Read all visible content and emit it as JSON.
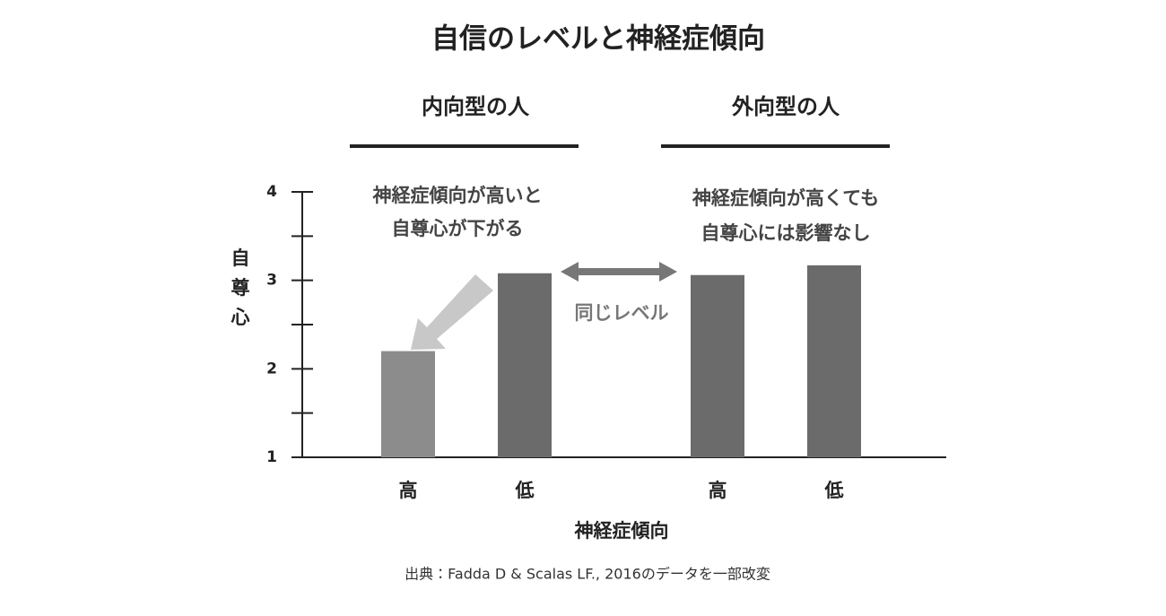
{
  "chart_data": {
    "type": "bar",
    "title": "自信のレベルと神経症傾向",
    "groups": [
      {
        "label": "内向型の人",
        "annotation": [
          "神経症傾向が高いと",
          "自尊心が下がる"
        ]
      },
      {
        "label": "外向型の人",
        "annotation": [
          "神経症傾向が高くても",
          "自尊心には影響なし"
        ]
      }
    ],
    "middle_annotation": "同じレベル",
    "categories": [
      "高",
      "低",
      "高",
      "低"
    ],
    "values": [
      2.2,
      3.08,
      3.06,
      3.17
    ],
    "colors": [
      "#8c8c8c",
      "#6b6b6b",
      "#6b6b6b",
      "#6b6b6b"
    ],
    "ylabel": "自尊心",
    "xlabel": "神経症傾向",
    "ylim": [
      1,
      4
    ],
    "yticks": [
      1,
      2,
      3,
      4
    ],
    "yminor_ticks": [
      1.5,
      2.5,
      3.5
    ],
    "source": "出典：Fadda D & Scalas LF., 2016のデータを一部改変"
  }
}
